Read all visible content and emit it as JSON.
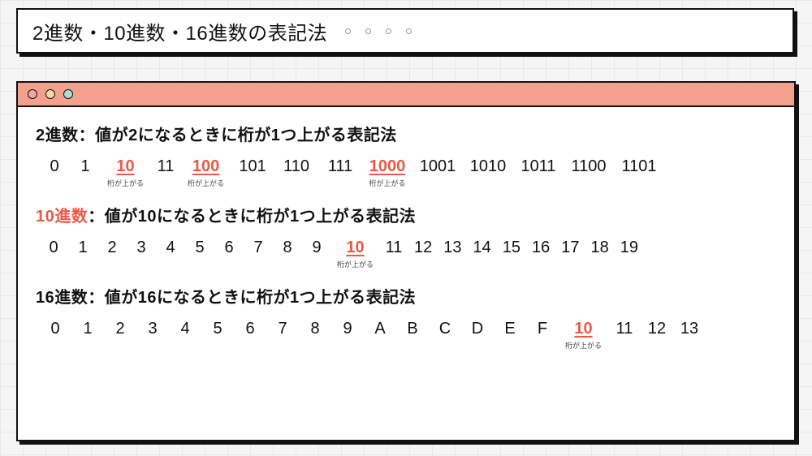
{
  "colors": {
    "accent": "#ea5a47",
    "titlebar": "#f3a18e",
    "border": "#111111",
    "background": "#f5f5f5",
    "grid": "#e8e8e8",
    "dot_red": "#f6a6a6",
    "dot_yellow": "#f6d9a0",
    "dot_green": "#a8e1d4"
  },
  "title": "2進数・10進数・16進数の表記法",
  "decorative_dot_count": 4,
  "caption_text": "桁が上がる",
  "sections": [
    {
      "id": "binary",
      "heading_prefix": "2進数",
      "heading_prefix_accent": false,
      "heading_rest": "：値が2になるときに桁が1つ上がる表記法",
      "row_class": "row-binary",
      "numbers": [
        {
          "v": "0"
        },
        {
          "v": "1"
        },
        {
          "v": "10",
          "hl": true,
          "cap": true
        },
        {
          "v": "11"
        },
        {
          "v": "100",
          "hl": true,
          "cap": true,
          "wide": true
        },
        {
          "v": "101",
          "wide": true
        },
        {
          "v": "110",
          "wide": true
        },
        {
          "v": "111",
          "wide": true
        },
        {
          "v": "1000",
          "hl": true,
          "cap": true,
          "wider": true
        },
        {
          "v": "1001",
          "wider": true
        },
        {
          "v": "1010",
          "wider": true
        },
        {
          "v": "1011",
          "wider": true
        },
        {
          "v": "1100",
          "wider": true
        },
        {
          "v": "1101",
          "wider": true
        }
      ]
    },
    {
      "id": "decimal",
      "heading_prefix": "10進数",
      "heading_prefix_accent": true,
      "heading_rest": "：値が10になるときに桁が1つ上がる表記法",
      "row_class": "row-decimal",
      "numbers": [
        {
          "v": "0"
        },
        {
          "v": "1"
        },
        {
          "v": "2"
        },
        {
          "v": "3"
        },
        {
          "v": "4"
        },
        {
          "v": "5"
        },
        {
          "v": "6"
        },
        {
          "v": "7"
        },
        {
          "v": "8"
        },
        {
          "v": "9"
        },
        {
          "v": "10",
          "hl": true,
          "cap": true
        },
        {
          "v": "11"
        },
        {
          "v": "12"
        },
        {
          "v": "13"
        },
        {
          "v": "14"
        },
        {
          "v": "15"
        },
        {
          "v": "16"
        },
        {
          "v": "17"
        },
        {
          "v": "18"
        },
        {
          "v": "19"
        }
      ]
    },
    {
      "id": "hex",
      "heading_prefix": "16進数",
      "heading_prefix_accent": false,
      "heading_rest": "：値が16になるときに桁が1つ上がる表記法",
      "row_class": "row-hex",
      "numbers": [
        {
          "v": "0"
        },
        {
          "v": "1"
        },
        {
          "v": "2"
        },
        {
          "v": "3"
        },
        {
          "v": "4"
        },
        {
          "v": "5"
        },
        {
          "v": "6"
        },
        {
          "v": "7"
        },
        {
          "v": "8"
        },
        {
          "v": "9"
        },
        {
          "v": "A"
        },
        {
          "v": "B"
        },
        {
          "v": "C"
        },
        {
          "v": "D"
        },
        {
          "v": "E"
        },
        {
          "v": "F"
        },
        {
          "v": "10",
          "hl": true,
          "cap": true
        },
        {
          "v": "11"
        },
        {
          "v": "12"
        },
        {
          "v": "13"
        }
      ]
    }
  ]
}
